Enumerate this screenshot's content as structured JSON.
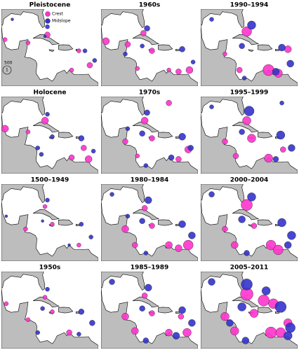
{
  "legend": {
    "crest": {
      "name": "Crest",
      "color": "#ff33cc"
    },
    "midslope": {
      "name": "Midslope",
      "color": "#3333cc"
    }
  },
  "scale": {
    "top": "500",
    "bottom": "1"
  },
  "panels": [
    {
      "title": "Pleistocene",
      "crest": [
        [
          -96.5,
          21.5,
          3
        ],
        [
          -79,
          23,
          4
        ],
        [
          -66,
          18,
          3
        ],
        [
          -61.5,
          13.5,
          4
        ],
        [
          -69,
          12,
          3
        ],
        [
          -87,
          20.5,
          3
        ]
      ],
      "midslope": [
        [
          -79,
          25.5,
          3
        ],
        [
          -63.5,
          18,
          3
        ],
        [
          -59.5,
          15,
          3
        ],
        [
          -80,
          22.5,
          2
        ],
        [
          -93.5,
          27.8,
          2
        ]
      ]
    },
    {
      "title": "1960s",
      "crest": [
        [
          -96,
          21,
          5
        ],
        [
          -87,
          20,
          4
        ],
        [
          -80.5,
          23.5,
          4
        ],
        [
          -77,
          18,
          4
        ],
        [
          -61.5,
          12,
          5
        ],
        [
          -66,
          11.5,
          4
        ],
        [
          -70,
          12,
          3
        ],
        [
          -83,
          12.5,
          3
        ]
      ],
      "midslope": [
        [
          -79,
          25,
          4
        ],
        [
          -64.5,
          18.5,
          4
        ],
        [
          -60,
          14.5,
          3
        ],
        [
          -81,
          19.5,
          3
        ],
        [
          -88,
          17,
          3
        ]
      ]
    },
    {
      "title": "1990–1994",
      "crest": [
        [
          -79,
          24,
          7
        ],
        [
          -70,
          12,
          8
        ],
        [
          -66,
          11,
          6
        ],
        [
          -82,
          12,
          4
        ],
        [
          -88,
          17,
          3
        ],
        [
          -62,
          18.5,
          5
        ]
      ],
      "midslope": [
        [
          -77,
          26,
          6
        ],
        [
          -64.5,
          19,
          5
        ],
        [
          -61,
          14,
          5
        ],
        [
          -81,
          19.5,
          4
        ],
        [
          -93.5,
          27.8,
          3
        ],
        [
          -67,
          11.5,
          5
        ],
        [
          -80,
          9.5,
          3
        ]
      ]
    },
    {
      "title": "Holocene",
      "crest": [
        [
          -96.5,
          21,
          5
        ],
        [
          -87,
          20,
          3
        ],
        [
          -80,
          23.5,
          5
        ],
        [
          -69,
          12,
          4
        ],
        [
          -62,
          11.5,
          5
        ],
        [
          -64,
          15,
          4
        ]
      ],
      "midslope": [
        [
          -79,
          25.5,
          3
        ],
        [
          -77,
          18.5,
          3
        ],
        [
          -65,
          18,
          4
        ],
        [
          -60,
          14,
          3
        ],
        [
          -83,
          15,
          3
        ],
        [
          -81.5,
          13,
          3
        ]
      ]
    },
    {
      "title": "1970s",
      "crest": [
        [
          -70,
          29,
          4
        ],
        [
          -80,
          23.5,
          5
        ],
        [
          -77,
          18,
          4
        ],
        [
          -66,
          11.5,
          4
        ],
        [
          -62,
          14.5,
          5
        ],
        [
          -83,
          12.5,
          3
        ],
        [
          -88,
          17,
          4
        ]
      ],
      "midslope": [
        [
          -79,
          26,
          4
        ],
        [
          -64.5,
          18.5,
          5
        ],
        [
          -61,
          15,
          4
        ],
        [
          -69,
          12,
          4
        ],
        [
          -81,
          19.5,
          4
        ],
        [
          -79.5,
          9.5,
          3
        ],
        [
          -87,
          21,
          3
        ]
      ]
    },
    {
      "title": "1995–1999",
      "crest": [
        [
          -79,
          23.5,
          6
        ],
        [
          -77,
          18,
          6
        ],
        [
          -70,
          11.8,
          6
        ],
        [
          -88,
          17,
          4
        ],
        [
          -83.5,
          12.5,
          4
        ],
        [
          -64,
          14.5,
          4
        ]
      ],
      "midslope": [
        [
          -78,
          26.5,
          7
        ],
        [
          -65,
          19,
          6
        ],
        [
          -60.5,
          15,
          5
        ],
        [
          -81,
          20,
          4
        ],
        [
          -67,
          11.5,
          4
        ],
        [
          -64.5,
          29,
          3
        ],
        [
          -93.5,
          27.8,
          3
        ]
      ]
    },
    {
      "title": "1500–1949",
      "crest": [
        [
          -80,
          24,
          3
        ],
        [
          -77,
          18.5,
          3
        ],
        [
          -88,
          17,
          3
        ],
        [
          -66,
          12,
          3
        ]
      ],
      "midslope": [
        [
          -79,
          26,
          3
        ],
        [
          -65,
          18.5,
          3
        ],
        [
          -61,
          14.5,
          3
        ],
        [
          -96,
          21,
          2
        ],
        [
          -70,
          12,
          2
        ],
        [
          -81,
          19.5,
          2
        ]
      ]
    },
    {
      "title": "1980–1984",
      "crest": [
        [
          -88,
          17,
          5
        ],
        [
          -80,
          23.5,
          4
        ],
        [
          -70,
          12,
          5
        ],
        [
          -62,
          12,
          7
        ],
        [
          -66,
          11,
          5
        ],
        [
          -84,
          12,
          4
        ],
        [
          -77,
          18,
          4
        ]
      ],
      "midslope": [
        [
          -78.5,
          26,
          5
        ],
        [
          -64.5,
          18.5,
          5
        ],
        [
          -60.5,
          15,
          5
        ],
        [
          -81,
          19.5,
          4
        ],
        [
          -93.5,
          27.8,
          3
        ],
        [
          -79.5,
          9.5,
          3
        ],
        [
          -87,
          21,
          3
        ]
      ]
    },
    {
      "title": "2000–2004",
      "crest": [
        [
          -79,
          24.5,
          8
        ],
        [
          -69,
          12,
          7
        ],
        [
          -66,
          10.5,
          7
        ],
        [
          -88,
          17,
          4
        ],
        [
          -84,
          12,
          5
        ],
        [
          -76,
          18,
          4
        ]
      ],
      "midslope": [
        [
          -77,
          27,
          6
        ],
        [
          -64.5,
          19,
          6
        ],
        [
          -60.5,
          15,
          6
        ],
        [
          -81,
          20,
          5
        ],
        [
          -93.5,
          27.8,
          4
        ],
        [
          -79,
          9.5,
          4
        ],
        [
          -62,
          12,
          5
        ]
      ]
    },
    {
      "title": "1950s",
      "crest": [
        [
          -96,
          21,
          3
        ],
        [
          -80,
          23,
          3
        ],
        [
          -77,
          18.5,
          3
        ],
        [
          -70,
          12,
          4
        ],
        [
          -87,
          16,
          3
        ]
      ],
      "midslope": [
        [
          -79,
          25.5,
          3
        ],
        [
          -65,
          18.5,
          4
        ],
        [
          -60.5,
          15,
          4
        ],
        [
          -66,
          11.5,
          3
        ],
        [
          -81,
          19.5,
          3
        ],
        [
          -83,
          12,
          3
        ]
      ]
    },
    {
      "title": "1985–1989",
      "crest": [
        [
          -88,
          17,
          5
        ],
        [
          -80,
          23.5,
          4
        ],
        [
          -70,
          12,
          5
        ],
        [
          -62.5,
          12,
          6
        ],
        [
          -84,
          12.5,
          5
        ],
        [
          -77,
          18,
          4
        ],
        [
          -65,
          17,
          4
        ]
      ],
      "midslope": [
        [
          -78.5,
          26,
          5
        ],
        [
          -64.5,
          19,
          5
        ],
        [
          -60.5,
          15,
          5
        ],
        [
          -81,
          19.5,
          4
        ],
        [
          -93.5,
          27.8,
          4
        ],
        [
          -67,
          11,
          5
        ],
        [
          -79.5,
          9.5,
          4
        ]
      ]
    },
    {
      "title": "2005–2011",
      "crest": [
        [
          -79,
          24,
          9
        ],
        [
          -72,
          22,
          8
        ],
        [
          -68,
          21,
          7
        ],
        [
          -69,
          12,
          8
        ],
        [
          -65,
          12,
          7
        ],
        [
          -88,
          17,
          6
        ],
        [
          -84,
          12.5,
          6
        ],
        [
          -76,
          18,
          6
        ],
        [
          -62,
          15,
          6
        ]
      ],
      "midslope": [
        [
          -79,
          27,
          8
        ],
        [
          -65,
          20,
          8
        ],
        [
          -61,
          13.5,
          7
        ],
        [
          -81,
          20,
          6
        ],
        [
          -93.5,
          27.8,
          5
        ],
        [
          -79.5,
          9.5,
          5
        ],
        [
          -71,
          25,
          6
        ],
        [
          -62,
          11,
          6
        ],
        [
          -86,
          15,
          5
        ]
      ]
    }
  ]
}
